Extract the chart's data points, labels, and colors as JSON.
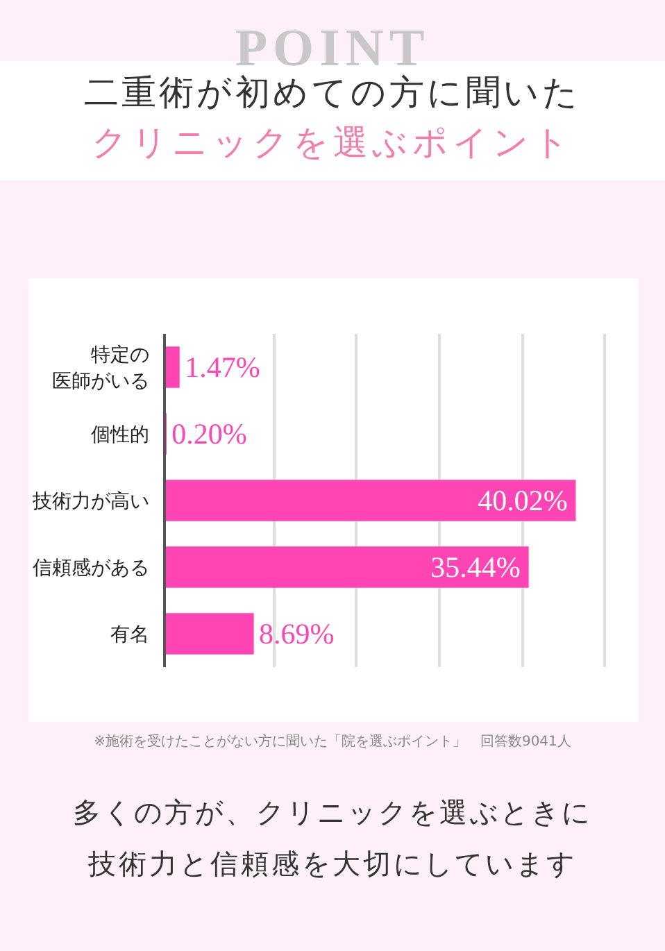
{
  "chart_data": {
    "type": "bar",
    "orientation": "horizontal",
    "title": "二重術が初めての方に聞いた",
    "subtitle": "クリニックを選ぶポイント",
    "categories": [
      "特定の医師がいる",
      "個性的",
      "技術力が高い",
      "信頼感がある",
      "有名"
    ],
    "values": [
      1.47,
      0.2,
      40.02,
      35.44,
      8.69
    ],
    "value_labels": [
      "1.47%",
      "0.20%",
      "40.02%",
      "35.44%",
      "8.69%"
    ],
    "color": "#ff44b4",
    "xlim": [
      0,
      43.5
    ],
    "xticks": [
      {
        "value": 10.7,
        "label": null
      },
      {
        "value": 18.7,
        "label": null
      },
      {
        "value": 26.8,
        "label": null
      },
      {
        "value": 34.8,
        "label": null
      },
      {
        "value": 42.8,
        "label": null
      }
    ],
    "grid": "x",
    "annotations": [
      "POINT",
      "※施術を受けたことがない方に聞いた「院を選ぶポイント」　回答数9041人",
      "多くの方が、クリニックを選ぶときに",
      "技術力と信頼感を大切にしています"
    ]
  }
}
